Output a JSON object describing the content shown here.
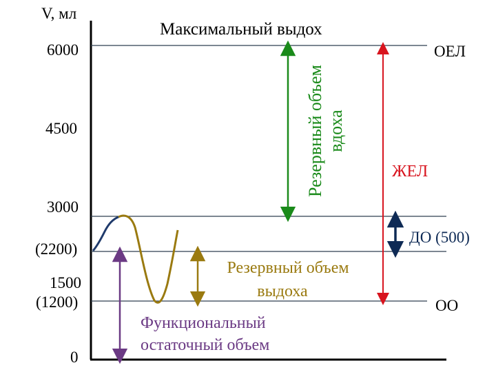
{
  "axis": {
    "y_label": "V, мл",
    "ticks": [
      "6000",
      "4500",
      "3000",
      "(2200)",
      "1500",
      "(1200)",
      "0"
    ]
  },
  "levels": {
    "max_inhale": "Максимальный выдох",
    "oel": "ОЕЛ",
    "oo": "ОО"
  },
  "volumes": {
    "irv_line1": "Резервный объем",
    "irv_line2": "вдоха",
    "vc": "ЖЕЛ",
    "tv": "ДО (500)",
    "erv_line1": "Резервный объем",
    "erv_line2": "выдоха",
    "frc_line1": "Функциональный",
    "frc_line2": "остаточный объем"
  },
  "colors": {
    "axis": "#000000",
    "level_line": "#2f3f4f",
    "breath_start": "#1f3a6b",
    "breath_curve": "#9a7a10",
    "irv": "#1a8a1a",
    "vc": "#d8141e",
    "tv": "#0e2a55",
    "erv": "#9a7a10",
    "frc": "#6b3a84"
  }
}
